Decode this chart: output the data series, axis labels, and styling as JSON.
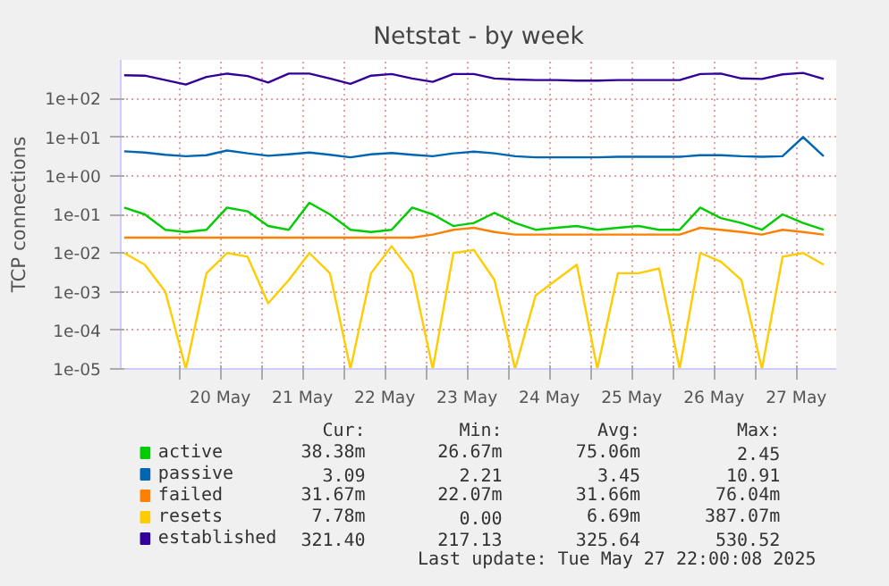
{
  "chart_data": {
    "type": "line",
    "title": "Netstat - by week",
    "ylabel": "TCP connections",
    "log": true,
    "grid": true,
    "legend": "bottom",
    "x": [
      "2025-05-19T08:00",
      "2025-05-19T14:00",
      "2025-05-19T20:00",
      "2025-05-20T02:00",
      "2025-05-20T08:00",
      "2025-05-20T14:00",
      "2025-05-20T20:00",
      "2025-05-21T02:00",
      "2025-05-21T08:00",
      "2025-05-21T14:00",
      "2025-05-21T20:00",
      "2025-05-22T02:00",
      "2025-05-22T08:00",
      "2025-05-22T14:00",
      "2025-05-22T20:00",
      "2025-05-23T02:00",
      "2025-05-23T08:00",
      "2025-05-23T14:00",
      "2025-05-23T20:00",
      "2025-05-24T02:00",
      "2025-05-24T08:00",
      "2025-05-24T14:00",
      "2025-05-24T20:00",
      "2025-05-25T02:00",
      "2025-05-25T08:00",
      "2025-05-25T14:00",
      "2025-05-25T20:00",
      "2025-05-26T02:00",
      "2025-05-26T08:00",
      "2025-05-26T14:00",
      "2025-05-26T20:00",
      "2025-05-27T02:00",
      "2025-05-27T08:00",
      "2025-05-27T14:00",
      "2025-05-27T20:00"
    ],
    "xlim": [
      "2025-05-19T07:00",
      "2025-05-27T23:40"
    ],
    "xticks": [
      {
        "value": "2025-05-20T00:00",
        "label": null
      },
      {
        "value": "2025-05-20T12:00",
        "label": "20 May"
      },
      {
        "value": "2025-05-21T00:00",
        "label": null
      },
      {
        "value": "2025-05-21T12:00",
        "label": "21 May"
      },
      {
        "value": "2025-05-22T00:00",
        "label": null
      },
      {
        "value": "2025-05-22T12:00",
        "label": "22 May"
      },
      {
        "value": "2025-05-23T00:00",
        "label": null
      },
      {
        "value": "2025-05-23T12:00",
        "label": "23 May"
      },
      {
        "value": "2025-05-24T00:00",
        "label": null
      },
      {
        "value": "2025-05-24T12:00",
        "label": "24 May"
      },
      {
        "value": "2025-05-25T00:00",
        "label": null
      },
      {
        "value": "2025-05-25T12:00",
        "label": "25 May"
      },
      {
        "value": "2025-05-26T00:00",
        "label": null
      },
      {
        "value": "2025-05-26T12:00",
        "label": "26 May"
      },
      {
        "value": "2025-05-27T00:00",
        "label": null
      },
      {
        "value": "2025-05-27T12:00",
        "label": "27 May"
      }
    ],
    "ylim": [
      1e-05,
      1000
    ],
    "yticks": [
      {
        "value": 1e-05,
        "label": "1e-05"
      },
      {
        "value": 0.0001,
        "label": "1e-04"
      },
      {
        "value": 0.001,
        "label": "1e-03"
      },
      {
        "value": 0.01,
        "label": "1e-02"
      },
      {
        "value": 0.1,
        "label": "1e-01"
      },
      {
        "value": 1,
        "label": "1e+00"
      },
      {
        "value": 10,
        "label": "1e+01"
      },
      {
        "value": 100,
        "label": "1e+02"
      }
    ],
    "series": [
      {
        "name": "active",
        "color": "#00cc00",
        "values": [
          0.15,
          0.1,
          0.04,
          0.035,
          0.04,
          0.15,
          0.12,
          0.05,
          0.04,
          0.2,
          0.1,
          0.04,
          0.035,
          0.04,
          0.15,
          0.1,
          0.05,
          0.06,
          0.11,
          0.06,
          0.04,
          0.045,
          0.05,
          0.04,
          0.045,
          0.05,
          0.04,
          0.04,
          0.15,
          0.08,
          0.06,
          0.04,
          0.1,
          0.06,
          0.04
        ]
      },
      {
        "name": "passive",
        "color": "#0066b3",
        "values": [
          4.3,
          4,
          3.5,
          3.2,
          3.4,
          4.5,
          3.8,
          3.3,
          3.6,
          4,
          3.5,
          3,
          3.6,
          3.9,
          3.5,
          3.2,
          3.8,
          4.2,
          3.8,
          3.2,
          3,
          3,
          3,
          3,
          3.1,
          3.1,
          3.1,
          3.1,
          3.4,
          3.4,
          3.2,
          3.1,
          3.2,
          10,
          3.2
        ]
      },
      {
        "name": "failed",
        "color": "#ff8000",
        "values": [
          0.025,
          0.025,
          0.025,
          0.025,
          0.025,
          0.025,
          0.025,
          0.025,
          0.025,
          0.025,
          0.025,
          0.025,
          0.025,
          0.025,
          0.025,
          0.03,
          0.04,
          0.045,
          0.035,
          0.03,
          0.03,
          0.03,
          0.03,
          0.03,
          0.03,
          0.03,
          0.03,
          0.03,
          0.045,
          0.04,
          0.035,
          0.03,
          0.04,
          0.035,
          0.03
        ]
      },
      {
        "name": "resets",
        "color": "#ffcc00",
        "values": [
          0.01,
          0.005,
          0.001,
          1e-05,
          0.003,
          0.01,
          0.008,
          0.0005,
          0.002,
          0.01,
          0.003,
          1e-05,
          0.003,
          0.015,
          0.003,
          1e-05,
          0.01,
          0.012,
          0.002,
          1e-05,
          0.0008,
          0.002,
          0.005,
          1e-05,
          0.003,
          0.003,
          0.004,
          1e-05,
          0.01,
          0.006,
          0.002,
          1e-05,
          0.008,
          0.01,
          0.005
        ]
      },
      {
        "name": "established",
        "color": "#330099",
        "values": [
          400,
          390,
          300,
          230,
          360,
          440,
          380,
          260,
          440,
          440,
          330,
          240,
          390,
          430,
          330,
          270,
          430,
          430,
          330,
          310,
          300,
          300,
          290,
          290,
          300,
          300,
          300,
          300,
          430,
          440,
          330,
          320,
          420,
          460,
          320
        ]
      }
    ],
    "annotations": [
      "Cur:",
      "Min:",
      "Avg:",
      "Max:",
      "38.38m",
      "26.67m",
      "75.06m",
      "2.45",
      "3.09",
      "2.21",
      "3.45",
      "10.91",
      "31.67m",
      "22.07m",
      "31.66m",
      "76.04m",
      "7.78m",
      "0.00",
      "6.69m",
      "387.07m",
      "321.40",
      "217.13",
      "325.64",
      "530.52",
      "Last update: Tue May 27 22:00:08 2025"
    ]
  }
}
